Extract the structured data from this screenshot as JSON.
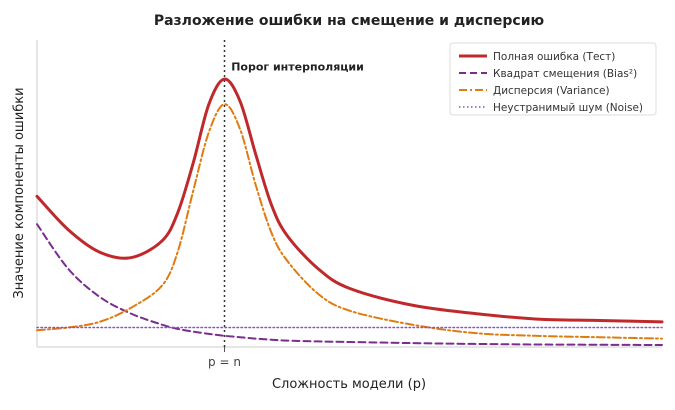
{
  "chart_data": {
    "type": "line",
    "title": "Разложение ошибки на смещение и дисперсию",
    "xlabel": "Сложность модели (p)",
    "ylabel": "Значение компоненты ошибки",
    "xlim": [
      0,
      4
    ],
    "ylim": [
      0,
      1.1
    ],
    "xticks": [
      {
        "value": 1.2,
        "label": "p = n"
      }
    ],
    "yticks": [],
    "grid": false,
    "legend_position": "top-right",
    "annotations": [
      {
        "type": "vline",
        "x": 1.2,
        "style": "dotted",
        "color": "#333333"
      },
      {
        "text": "Порог интерполяции",
        "x": 1.23,
        "y": 0.99
      }
    ],
    "series": [
      {
        "name": "Полная ошибка (Тест)",
        "color": "#c0292b",
        "dash": "solid"
      },
      {
        "name": "Квадрат смещения (Bias²)",
        "color": "#7b2d8e",
        "dash": "dashed"
      },
      {
        "name": "Дисперсия (Variance)",
        "color": "#e07b10",
        "dash": "dashdot"
      },
      {
        "name": "Неустранимый шум (Noise)",
        "color": "#8a4fcf",
        "dash": "dotted"
      }
    ],
    "x": [
      0,
      0.2,
      0.4,
      0.6,
      0.8,
      0.9,
      1.0,
      1.1,
      1.2,
      1.3,
      1.4,
      1.5,
      1.6,
      1.8,
      2.0,
      2.4,
      2.8,
      3.2,
      3.6,
      4.0
    ],
    "values": {
      "total": [
        0.54,
        0.42,
        0.34,
        0.32,
        0.38,
        0.48,
        0.66,
        0.87,
        0.96,
        0.88,
        0.69,
        0.51,
        0.4,
        0.28,
        0.21,
        0.15,
        0.12,
        0.1,
        0.095,
        0.09
      ],
      "bias": [
        0.44,
        0.28,
        0.18,
        0.12,
        0.08,
        0.065,
        0.055,
        0.047,
        0.04,
        0.035,
        0.03,
        0.026,
        0.023,
        0.02,
        0.018,
        0.014,
        0.011,
        0.009,
        0.008,
        0.007
      ],
      "variance": [
        0.06,
        0.07,
        0.09,
        0.14,
        0.22,
        0.34,
        0.56,
        0.77,
        0.87,
        0.78,
        0.58,
        0.41,
        0.31,
        0.19,
        0.13,
        0.08,
        0.05,
        0.04,
        0.035,
        0.03
      ],
      "noise": [
        0.07,
        0.07,
        0.07,
        0.07,
        0.07,
        0.07,
        0.07,
        0.07,
        0.07,
        0.07,
        0.07,
        0.07,
        0.07,
        0.07,
        0.07,
        0.07,
        0.07,
        0.07,
        0.07,
        0.07
      ]
    }
  }
}
